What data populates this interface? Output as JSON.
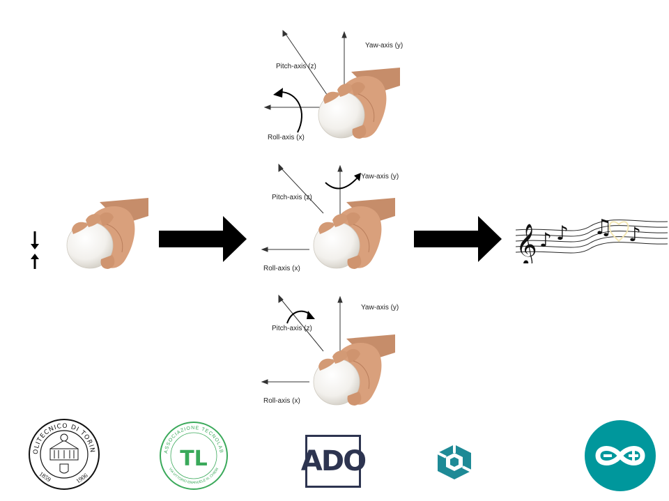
{
  "panels": {
    "top": {
      "pitch": "Pitch-axis (z)",
      "yaw": "Yaw-axis (y)",
      "roll": "Roll-axis (x)"
    },
    "middle": {
      "pitch": "Pitch-axis (z)",
      "yaw": "Yaw-axis (y)",
      "roll": "Roll-axis (x)"
    },
    "bottom": {
      "pitch": "Pitch-axis (z)",
      "yaw": "Yaw-axis (y)",
      "roll": "Roll-axis (x)"
    }
  },
  "logos": {
    "polito": {
      "top_text": "POLITECNICO DI TORINO",
      "year_left": "1859",
      "year_right": "1906"
    },
    "tecnolab": {
      "top_text": "ASSOCIAZIONE TECNOLAB",
      "bottom_text": "VIA VITTORIO EMANUELE III, CHIERI",
      "mark": "TL"
    },
    "ado": {
      "text": "ADO"
    }
  },
  "colors": {
    "arrow": "#000000",
    "ado_border": "#2d3450",
    "arduino": "#00979c",
    "tecnolab": "#3aa95a",
    "autodesk": "#1e8a96"
  }
}
